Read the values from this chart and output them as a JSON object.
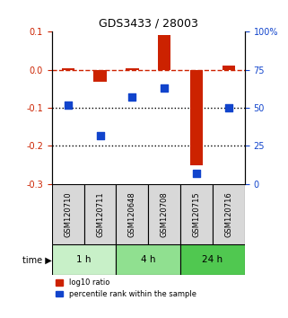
{
  "title": "GDS3433 / 28003",
  "samples": [
    "GSM120710",
    "GSM120711",
    "GSM120648",
    "GSM120708",
    "GSM120715",
    "GSM120716"
  ],
  "log10_ratio": [
    0.005,
    -0.032,
    0.005,
    0.092,
    -0.252,
    0.01
  ],
  "percentile_rank": [
    52,
    32,
    57,
    63,
    7,
    50
  ],
  "time_groups": [
    {
      "label": "1 h",
      "samples": [
        "GSM120710",
        "GSM120711"
      ],
      "color": "#c8f0c8"
    },
    {
      "label": "4 h",
      "samples": [
        "GSM120648",
        "GSM120708"
      ],
      "color": "#90e090"
    },
    {
      "label": "24 h",
      "samples": [
        "GSM120715",
        "GSM120716"
      ],
      "color": "#50c850"
    }
  ],
  "left_axis": {
    "min": -0.3,
    "max": 0.1,
    "ticks": [
      -0.3,
      -0.2,
      -0.1,
      0.0,
      0.1
    ]
  },
  "right_axis": {
    "min": 0,
    "max": 100,
    "ticks": [
      0,
      25,
      50,
      75,
      100
    ]
  },
  "bar_color": "#cc2200",
  "dot_color": "#1144cc",
  "dashed_line_color": "#cc2200",
  "dotted_line_color": "#000000",
  "bar_width": 0.4,
  "dot_size": 40
}
